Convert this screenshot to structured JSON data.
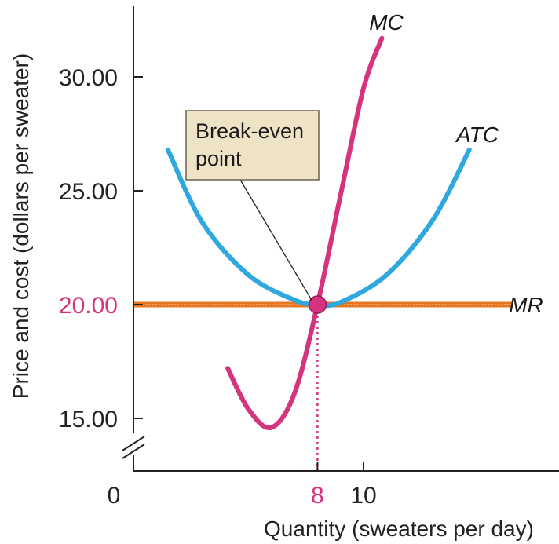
{
  "chart_data": {
    "type": "line",
    "title": "",
    "xlabel": "Quantity (sweaters per day)",
    "ylabel": "Price and cost (dollars per sweater)",
    "x_origin_label": "0",
    "xlim": [
      0,
      14
    ],
    "ylim": [
      13.5,
      32.5
    ],
    "x_ticks": [
      {
        "value": 8,
        "label": "8",
        "highlight": true
      },
      {
        "value": 10,
        "label": "10",
        "highlight": false
      }
    ],
    "y_ticks": [
      {
        "value": 15,
        "label": "15.00",
        "highlight": false
      },
      {
        "value": 20,
        "label": "20.00",
        "highlight": true
      },
      {
        "value": 25,
        "label": "25.00",
        "highlight": false
      },
      {
        "value": 30,
        "label": "30.00",
        "highlight": false
      }
    ],
    "axis_break": true,
    "grid": false,
    "series": [
      {
        "name": "MC",
        "color": "#d6337f",
        "x": [
          4.1,
          5.0,
          6.0,
          7.0,
          8.0,
          9.0,
          10.0,
          10.8
        ],
        "y": [
          17.2,
          15.4,
          14.6,
          16.1,
          20.0,
          24.8,
          29.5,
          31.7
        ]
      },
      {
        "name": "ATC",
        "color": "#2fa8e0",
        "x": [
          1.5,
          3.0,
          5.0,
          7.0,
          8.0,
          9.0,
          11.0,
          13.0,
          14.6
        ],
        "y": [
          26.8,
          23.6,
          21.3,
          20.2,
          20.0,
          20.1,
          21.3,
          23.7,
          26.8
        ]
      },
      {
        "name": "MR",
        "color": "#e87722",
        "x": [
          0,
          16.5
        ],
        "y": [
          20.0,
          20.0
        ]
      }
    ],
    "annotations": [
      {
        "text_lines": [
          "Break-even",
          "point"
        ],
        "x": 8,
        "y": 20,
        "style": "callout"
      }
    ],
    "guide_line": {
      "x": 8,
      "y": 20,
      "color": "#d6337f",
      "style": "dotted"
    }
  }
}
